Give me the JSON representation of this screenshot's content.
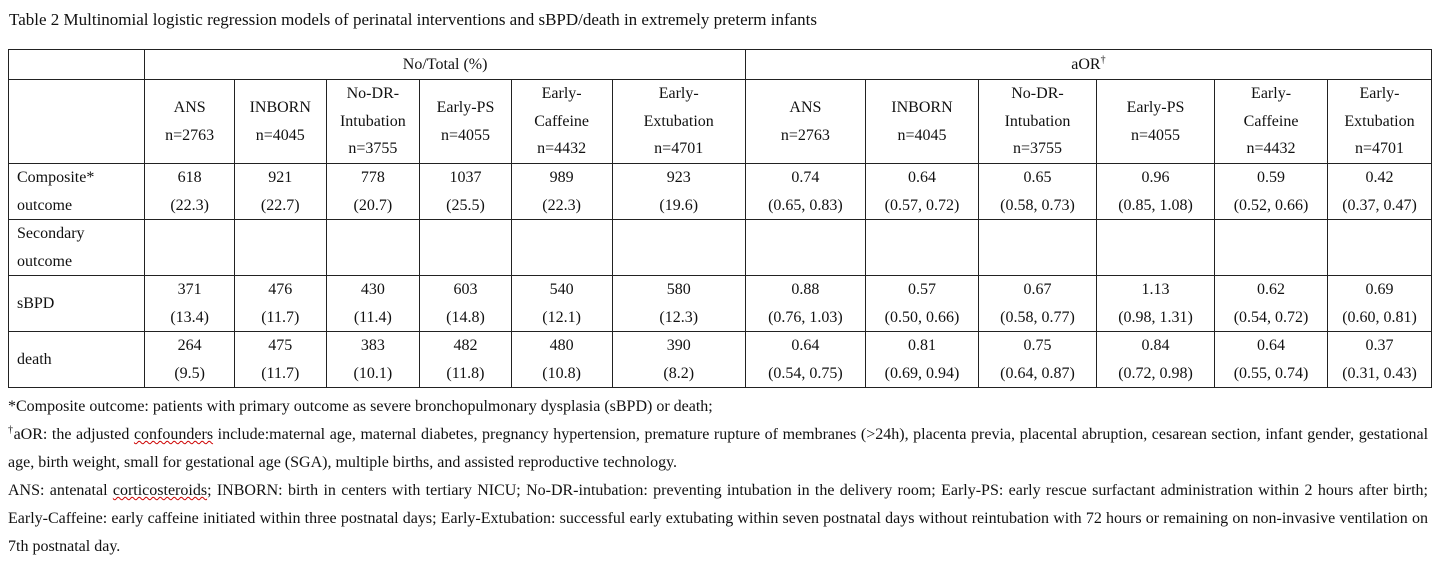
{
  "title": "Table 2 Multinomial logistic regression models of perinatal interventions and sBPD/death in extremely preterm infants",
  "group_headers": {
    "counts": "No/Total (%)",
    "aor": "aOR",
    "aor_mark": "†"
  },
  "columns": [
    {
      "name_lines": [
        "ANS"
      ],
      "n": "n=2763"
    },
    {
      "name_lines": [
        "INBORN"
      ],
      "n": "n=4045"
    },
    {
      "name_lines": [
        "No-DR-",
        "Intubation"
      ],
      "n": "n=3755"
    },
    {
      "name_lines": [
        "Early-PS"
      ],
      "n": "n=4055"
    },
    {
      "name_lines": [
        "Early-",
        "Caffeine"
      ],
      "n": "n=4432"
    },
    {
      "name_lines": [
        "Early-",
        "Extubation"
      ],
      "n": "n=4701"
    }
  ],
  "rows": [
    {
      "label_lines": [
        "Composite*",
        "outcome"
      ],
      "counts": [
        [
          "618",
          "(22.3)"
        ],
        [
          "921",
          "(22.7)"
        ],
        [
          "778",
          "(20.7)"
        ],
        [
          "1037",
          "(25.5)"
        ],
        [
          "989",
          "(22.3)"
        ],
        [
          "923",
          "(19.6)"
        ]
      ],
      "aor": [
        [
          "0.74",
          "(0.65, 0.83)"
        ],
        [
          "0.64",
          "(0.57, 0.72)"
        ],
        [
          "0.65",
          "(0.58, 0.73)"
        ],
        [
          "0.96",
          "(0.85, 1.08)"
        ],
        [
          "0.59",
          "(0.52, 0.66)"
        ],
        [
          "0.42",
          "(0.37, 0.47)"
        ]
      ]
    },
    {
      "label_lines": [
        "Secondary",
        "outcome"
      ]
    },
    {
      "label_lines": [
        "sBPD"
      ],
      "counts": [
        [
          "371",
          "(13.4)"
        ],
        [
          "476",
          "(11.7)"
        ],
        [
          "430",
          "(11.4)"
        ],
        [
          "603",
          "(14.8)"
        ],
        [
          "540",
          "(12.1)"
        ],
        [
          "580",
          "(12.3)"
        ]
      ],
      "aor": [
        [
          "0.88",
          "(0.76, 1.03)"
        ],
        [
          "0.57",
          "(0.50, 0.66)"
        ],
        [
          "0.67",
          "(0.58, 0.77)"
        ],
        [
          "1.13",
          "(0.98, 1.31)"
        ],
        [
          "0.62",
          "(0.54, 0.72)"
        ],
        [
          "0.69",
          "(0.60, 0.81)"
        ]
      ]
    },
    {
      "label_lines": [
        "death"
      ],
      "counts": [
        [
          "264",
          "(9.5)"
        ],
        [
          "475",
          "(11.7)"
        ],
        [
          "383",
          "(10.1)"
        ],
        [
          "482",
          "(11.8)"
        ],
        [
          "480",
          "(10.8)"
        ],
        [
          "390",
          "(8.2)"
        ]
      ],
      "aor": [
        [
          "0.64",
          "(0.54, 0.75)"
        ],
        [
          "0.81",
          "(0.69, 0.94)"
        ],
        [
          "0.75",
          "(0.64, 0.87)"
        ],
        [
          "0.84",
          "(0.72, 0.98)"
        ],
        [
          "0.64",
          "(0.55, 0.74)"
        ],
        [
          "0.37",
          "(0.31, 0.43)"
        ]
      ]
    }
  ],
  "notes": {
    "composite": "*Composite outcome: patients with primary outcome as severe bronchopulmonary dysplasia (sBPD) or death;",
    "aor_mark": "†",
    "aor_pre": "aOR: the adjusted ",
    "aor_word": "confounders",
    "aor_post": " include:maternal age, maternal diabetes, pregnancy hypertension, premature rupture of membranes (>24h), placenta previa, placental abruption, cesarean section, infant gender, gestational age, birth weight, small for gestational age (SGA), multiple births, and assisted reproductive technology.",
    "abbr_pre": "ANS: antenatal ",
    "abbr_word": "corticosteroids",
    "abbr_post": "; INBORN: birth in centers with tertiary NICU; No-DR-intubation: preventing intubation in the delivery room; Early-PS: early rescue surfactant administration within 2 hours after birth; Early-Caffeine: early caffeine initiated within three postnatal days; Early-Extubation: successful early extubating within seven postnatal days without reintubation with 72 hours or remaining on non-invasive ventilation on 7th postnatal day."
  }
}
